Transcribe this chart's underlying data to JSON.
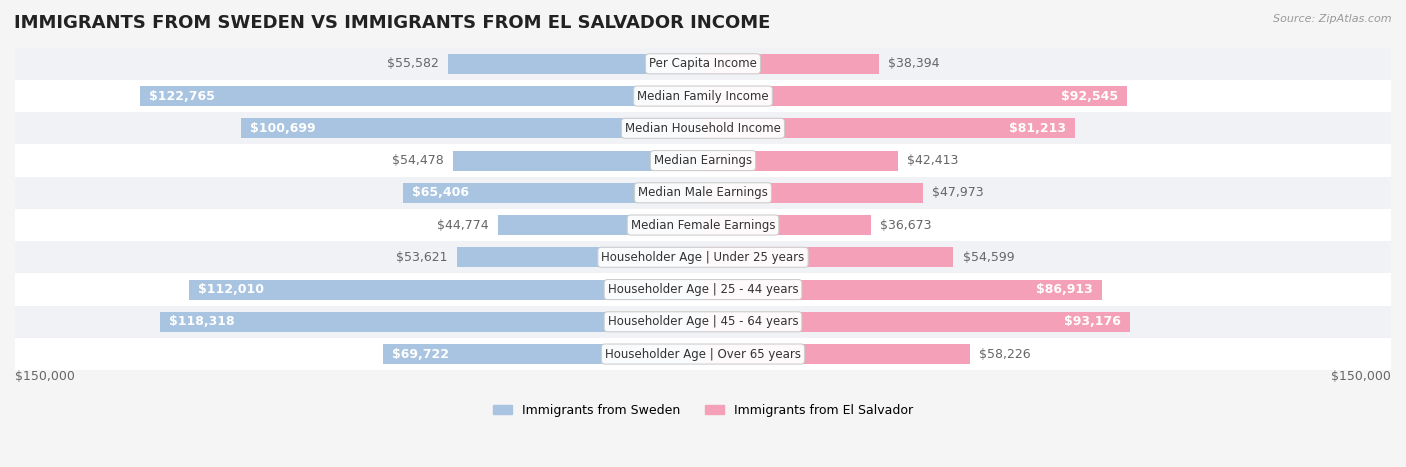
{
  "title": "IMMIGRANTS FROM SWEDEN VS IMMIGRANTS FROM EL SALVADOR INCOME",
  "source": "Source: ZipAtlas.com",
  "categories": [
    "Per Capita Income",
    "Median Family Income",
    "Median Household Income",
    "Median Earnings",
    "Median Male Earnings",
    "Median Female Earnings",
    "Householder Age | Under 25 years",
    "Householder Age | 25 - 44 years",
    "Householder Age | 45 - 64 years",
    "Householder Age | Over 65 years"
  ],
  "sweden_values": [
    55582,
    122765,
    100699,
    54478,
    65406,
    44774,
    53621,
    112010,
    118318,
    69722
  ],
  "salvador_values": [
    38394,
    92545,
    81213,
    42413,
    47973,
    36673,
    54599,
    86913,
    93176,
    58226
  ],
  "sweden_color": "#a8c4e0",
  "salvador_color": "#f4a0b8",
  "sweden_label_color": "#5588bb",
  "salvador_label_color": "#e06080",
  "max_value": 150000,
  "background_color": "#f5f5f5",
  "row_background": "#ffffff",
  "row_background_alt": "#f0f0f0",
  "sweden_legend": "Immigrants from Sweden",
  "salvador_legend": "Immigrants from El Salvador",
  "label_fontsize": 9,
  "title_fontsize": 13
}
